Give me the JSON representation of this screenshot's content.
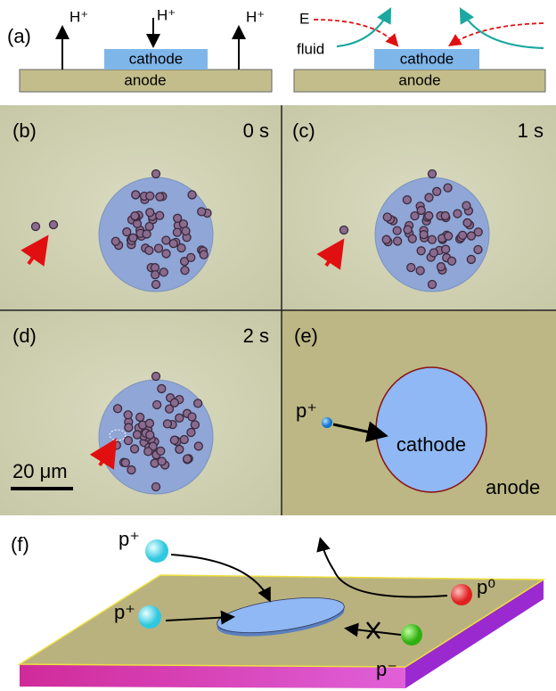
{
  "panel_a": {
    "label": "(a)",
    "left": {
      "ions": [
        "H⁺",
        "H⁺",
        "H⁺"
      ],
      "cathode": "cathode",
      "anode": "anode"
    },
    "right": {
      "field": "E",
      "fluid": "fluid",
      "cathode": "cathode",
      "anode": "anode"
    }
  },
  "panels": [
    {
      "label": "(b)",
      "time": "0 s"
    },
    {
      "label": "(c)",
      "time": "1 s"
    },
    {
      "label": "(d)",
      "time": "2 s",
      "scale_bar": "20 μm"
    }
  ],
  "panel_e": {
    "label": "(e)",
    "particle": "p⁺",
    "cathode": "cathode",
    "anode": "anode"
  },
  "panel_f": {
    "label": "(f)",
    "particles": [
      "p⁺",
      "p⁺",
      "p⁰",
      "p⁻"
    ]
  }
}
